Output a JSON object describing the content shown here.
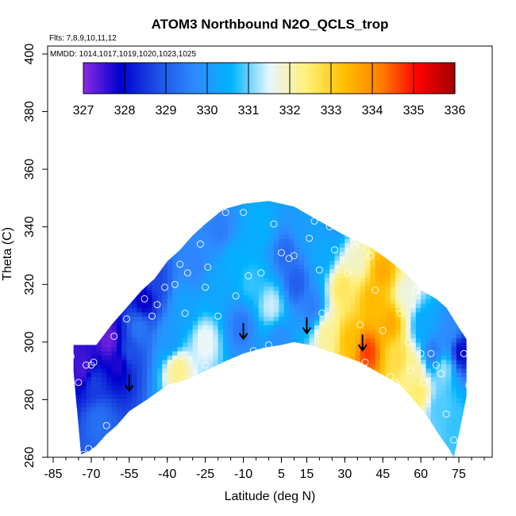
{
  "chart_data": {
    "type": "heatmap",
    "title": "ATOM3 Northbound N2O_QCLS_trop",
    "subtitle_lines": [
      "Flts: 7,8,9,10,11,12",
      "MMDD: 1014,1017,1019,1020,1023,1025"
    ],
    "xlabel": "Latitude (deg N)",
    "ylabel": "Theta (C)",
    "xlim": [
      -85,
      85
    ],
    "ylim": [
      260,
      400
    ],
    "x_ticks": [
      "-85",
      "-70",
      "-55",
      "-40",
      "-25",
      "-10",
      "5",
      "15",
      "30",
      "45",
      "60",
      "75"
    ],
    "y_ticks": [
      "260",
      "280",
      "300",
      "320",
      "340",
      "360",
      "380",
      "400"
    ],
    "grid": false,
    "colorbar": {
      "ticks": [
        "327",
        "328",
        "329",
        "330",
        "331",
        "332",
        "333",
        "334",
        "335",
        "336"
      ],
      "range": [
        327,
        336
      ],
      "placement": "top, inside plot",
      "colors": [
        "#8B2BE2",
        "#0000CD",
        "#1E50E6",
        "#2E8BFF",
        "#00B4FF",
        "#E8F6FF",
        "#FFF07A",
        "#FFC000",
        "#FF8000",
        "#FF0000",
        "#A00000"
      ]
    },
    "domain_boundary": {
      "upper": [
        [
          -77,
          299
        ],
        [
          -68,
          299
        ],
        [
          -62,
          306
        ],
        [
          -55,
          313
        ],
        [
          -50,
          318
        ],
        [
          -45,
          322
        ],
        [
          -40,
          328
        ],
        [
          -35,
          332
        ],
        [
          -30,
          337
        ],
        [
          -25,
          341
        ],
        [
          -18,
          346
        ],
        [
          -10,
          348
        ],
        [
          0,
          349
        ],
        [
          10,
          347
        ],
        [
          20,
          342
        ],
        [
          30,
          337
        ],
        [
          40,
          333
        ],
        [
          48,
          328
        ],
        [
          55,
          323
        ],
        [
          60,
          318
        ],
        [
          66,
          315
        ],
        [
          70,
          312
        ],
        [
          75,
          305
        ],
        [
          78,
          301
        ]
      ],
      "lower": [
        [
          78,
          281
        ],
        [
          75,
          268
        ],
        [
          73,
          260
        ],
        [
          71,
          263
        ],
        [
          67,
          268
        ],
        [
          62,
          275
        ],
        [
          58,
          279
        ],
        [
          55,
          282
        ],
        [
          52,
          285
        ],
        [
          48,
          287
        ],
        [
          42,
          290
        ],
        [
          36,
          293
        ],
        [
          30,
          295
        ],
        [
          23,
          297
        ],
        [
          16,
          299
        ],
        [
          10,
          300
        ],
        [
          5,
          299
        ],
        [
          -2,
          298
        ],
        [
          -10,
          296
        ],
        [
          -18,
          293
        ],
        [
          -25,
          290
        ],
        [
          -32,
          287
        ],
        [
          -40,
          285
        ],
        [
          -48,
          280
        ],
        [
          -55,
          276
        ],
        [
          -60,
          271
        ],
        [
          -64,
          268
        ],
        [
          -68,
          264
        ],
        [
          -71,
          262
        ],
        [
          -74,
          261
        ],
        [
          -77,
          290
        ]
      ]
    },
    "field_values": [
      [
        -78,
        296,
        327.5
      ],
      [
        -74,
        290,
        327.4
      ],
      [
        -70,
        285,
        328.6
      ],
      [
        -68,
        272,
        329.3
      ],
      [
        -64,
        300,
        327.2
      ],
      [
        -60,
        292,
        327.7
      ],
      [
        -56,
        296,
        328.8
      ],
      [
        -52,
        304,
        329.4
      ],
      [
        -50,
        314,
        327.8
      ],
      [
        -46,
        320,
        328.7
      ],
      [
        -40,
        300,
        330.0
      ],
      [
        -37,
        290,
        332.3
      ],
      [
        -34,
        312,
        330.2
      ],
      [
        -30,
        326,
        329.6
      ],
      [
        -26,
        300,
        331.6
      ],
      [
        -22,
        318,
        330.3
      ],
      [
        -20,
        338,
        329.5
      ],
      [
        -15,
        328,
        330.5
      ],
      [
        -12,
        305,
        329.4
      ],
      [
        -8,
        320,
        330.8
      ],
      [
        -4,
        340,
        330.5
      ],
      [
        0,
        312,
        331.4
      ],
      [
        3,
        300,
        329.8
      ],
      [
        6,
        330,
        329.2
      ],
      [
        10,
        320,
        329.0
      ],
      [
        13,
        338,
        330.1
      ],
      [
        16,
        312,
        329.5
      ],
      [
        20,
        330,
        330.3
      ],
      [
        22,
        302,
        332.2
      ],
      [
        25,
        340,
        330.0
      ],
      [
        28,
        318,
        332.6
      ],
      [
        31,
        300,
        333.3
      ],
      [
        34,
        328,
        331.9
      ],
      [
        38,
        296,
        334.7
      ],
      [
        40,
        314,
        333.4
      ],
      [
        44,
        324,
        333.6
      ],
      [
        47,
        306,
        333.6
      ],
      [
        50,
        294,
        332.8
      ],
      [
        53,
        316,
        331.7
      ],
      [
        56,
        290,
        332.2
      ],
      [
        60,
        305,
        330.3
      ],
      [
        64,
        296,
        329.4
      ],
      [
        68,
        290,
        331.2
      ],
      [
        71,
        304,
        329.7
      ],
      [
        75,
        296,
        328.0
      ],
      [
        73,
        270,
        330.8
      ],
      [
        66,
        276,
        330.9
      ],
      [
        58,
        282,
        332.5
      ]
    ],
    "points": [
      [
        -78,
        295
      ],
      [
        -75,
        286
      ],
      [
        -72,
        292
      ],
      [
        -70,
        292
      ],
      [
        -69,
        293
      ],
      [
        -73,
        261
      ],
      [
        -71,
        263
      ],
      [
        -64,
        271
      ],
      [
        -61,
        302
      ],
      [
        -56,
        308
      ],
      [
        -51,
        321
      ],
      [
        -49,
        315
      ],
      [
        -46,
        309
      ],
      [
        -44,
        313
      ],
      [
        -41,
        319
      ],
      [
        -37,
        320
      ],
      [
        -35,
        327
      ],
      [
        -33,
        310
      ],
      [
        -32,
        324
      ],
      [
        -27,
        334
      ],
      [
        -25,
        319
      ],
      [
        -25,
        292
      ],
      [
        -24,
        326
      ],
      [
        -20,
        309
      ],
      [
        -17,
        345
      ],
      [
        -13,
        316
      ],
      [
        -10,
        345
      ],
      [
        -8,
        323
      ],
      [
        -6,
        297
      ],
      [
        -3,
        324
      ],
      [
        0,
        299
      ],
      [
        2,
        341
      ],
      [
        5,
        331
      ],
      [
        8,
        329
      ],
      [
        10,
        330
      ],
      [
        14,
        347
      ],
      [
        16,
        336
      ],
      [
        18,
        342
      ],
      [
        20,
        325
      ],
      [
        21,
        310
      ],
      [
        24,
        340
      ],
      [
        26,
        332
      ],
      [
        29,
        339
      ],
      [
        31,
        324
      ],
      [
        34,
        333
      ],
      [
        36,
        306
      ],
      [
        38,
        293
      ],
      [
        40,
        330
      ],
      [
        42,
        318
      ],
      [
        45,
        304
      ],
      [
        48,
        288
      ],
      [
        50,
        286
      ],
      [
        52,
        310
      ],
      [
        55,
        300
      ],
      [
        56,
        290
      ],
      [
        58,
        318
      ],
      [
        60,
        296
      ],
      [
        61,
        286
      ],
      [
        64,
        296
      ],
      [
        66,
        292
      ],
      [
        68,
        289
      ],
      [
        70,
        275
      ],
      [
        73,
        266
      ],
      [
        75,
        318
      ],
      [
        77,
        296
      ],
      [
        79,
        285
      ]
    ],
    "arrows": [
      [
        -55,
        282
      ],
      [
        -10,
        300
      ],
      [
        15,
        302
      ],
      [
        37,
        296
      ]
    ]
  }
}
